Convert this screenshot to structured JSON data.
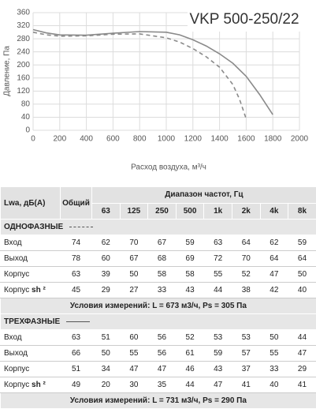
{
  "chart_data": {
    "type": "line",
    "title": "VKP 500-250/22",
    "xlabel": "Расход воздуха, м³/ч",
    "ylabel": "Давление, Па",
    "xlim": [
      0,
      2000
    ],
    "xticks": [
      0,
      200,
      400,
      600,
      800,
      1000,
      1200,
      1400,
      1600,
      1800,
      2000
    ],
    "ylim": [
      0,
      360
    ],
    "yticks": [
      0,
      40,
      80,
      120,
      160,
      200,
      240,
      280,
      320,
      360
    ],
    "grid": true,
    "series": [
      {
        "color": "#8a8a8a",
        "style": "solid",
        "x": [
          0,
          100,
          200,
          400,
          600,
          800,
          1000,
          1100,
          1200,
          1300,
          1400,
          1500,
          1600,
          1700,
          1800
        ],
        "values": [
          308,
          298,
          292,
          291,
          297,
          302,
          300,
          292,
          277,
          258,
          234,
          205,
          165,
          110,
          48
        ]
      },
      {
        "color": "#8a8a8a",
        "style": "dashed",
        "x": [
          0,
          100,
          200,
          400,
          600,
          800,
          1000,
          1100,
          1200,
          1300,
          1400,
          1500,
          1550,
          1600
        ],
        "values": [
          300,
          292,
          288,
          289,
          294,
          295,
          283,
          270,
          250,
          225,
          193,
          140,
          95,
          35
        ]
      }
    ]
  },
  "table": {
    "header": {
      "label": "Lwa, дБ(A)",
      "total": "Общий",
      "range": "Диапазон частот, Гц",
      "bands": [
        "63",
        "125",
        "250",
        "500",
        "1k",
        "2k",
        "4k",
        "8k"
      ]
    },
    "sections": [
      {
        "title": "ОДНОФАЗНЫЕ",
        "line": "dashed",
        "rows": [
          {
            "label": "Вход",
            "values": [
              74,
              62,
              70,
              67,
              59,
              63,
              64,
              62,
              59
            ]
          },
          {
            "label": "Выход",
            "values": [
              78,
              60,
              67,
              68,
              69,
              72,
              70,
              64,
              64
            ]
          },
          {
            "label": "Корпус",
            "values": [
              63,
              39,
              50,
              58,
              58,
              55,
              52,
              47,
              50
            ]
          },
          {
            "label": "Корпус",
            "note": "sh ²",
            "values": [
              45,
              29,
              27,
              33,
              43,
              44,
              38,
              42,
              40
            ]
          }
        ],
        "conditions": "Условия измерений: L = 673 м3/ч, Ps = 305 Па"
      },
      {
        "title": "ТРЕХФАЗНЫЕ",
        "line": "solid",
        "rows": [
          {
            "label": "Вход",
            "values": [
              63,
              51,
              60,
              56,
              52,
              53,
              53,
              50,
              44
            ]
          },
          {
            "label": "Выход",
            "values": [
              66,
              50,
              55,
              56,
              61,
              59,
              57,
              55,
              47
            ]
          },
          {
            "label": "Корпус",
            "values": [
              51,
              34,
              47,
              47,
              46,
              43,
              37,
              33,
              29
            ]
          },
          {
            "label": "Корпус",
            "note": "sh ²",
            "values": [
              49,
              20,
              30,
              35,
              44,
              47,
              41,
              40,
              41
            ]
          }
        ],
        "conditions": "Условия измерений: L = 731 м3/ч, Ps = 290 Па"
      }
    ]
  }
}
